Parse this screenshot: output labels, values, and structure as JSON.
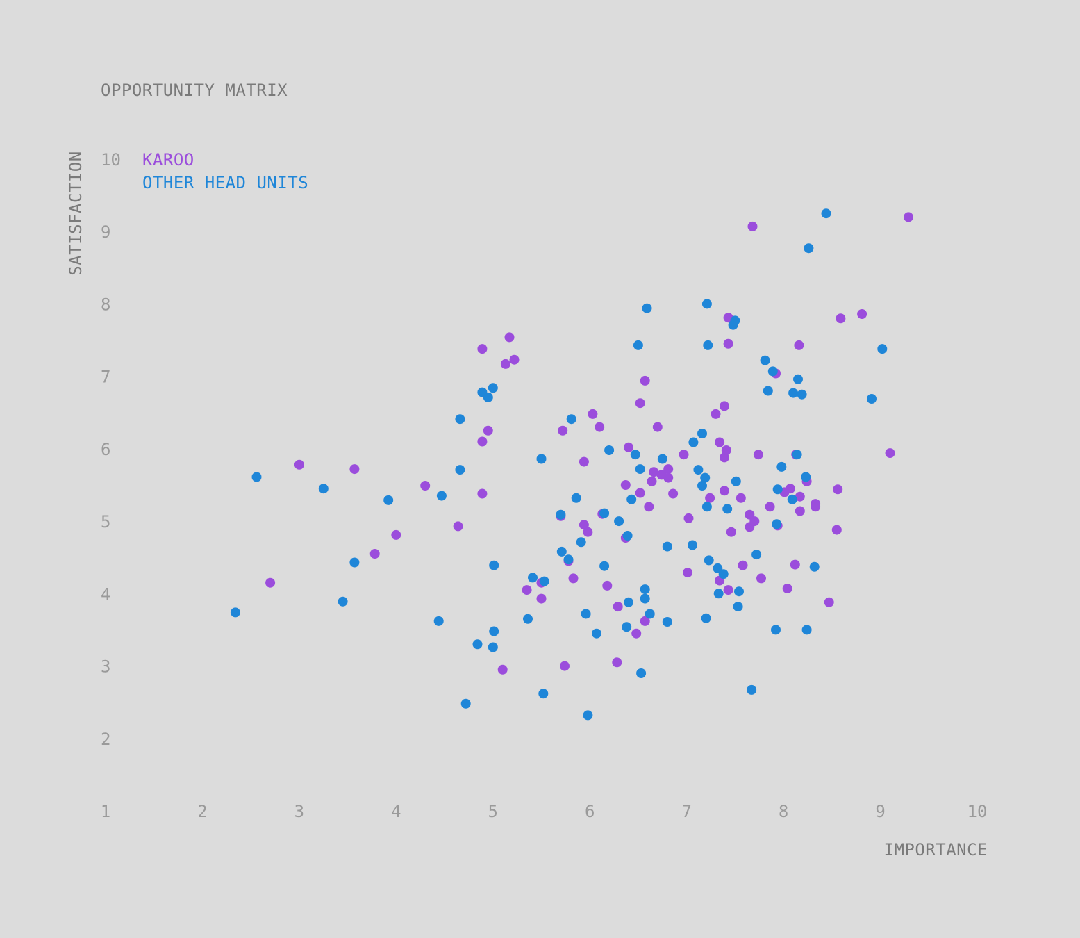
{
  "chart_data": {
    "type": "scatter",
    "title": "OPPORTUNITY MATRIX",
    "xlabel": "IMPORTANCE",
    "ylabel": "SATISFACTION",
    "xlim": [
      1,
      10
    ],
    "ylim": [
      1,
      10
    ],
    "xticks": [
      "1",
      "2",
      "3",
      "4",
      "5",
      "6",
      "7",
      "8",
      "9",
      "10"
    ],
    "yticks": [
      "2",
      "3",
      "4",
      "5",
      "6",
      "7",
      "8",
      "9",
      "10"
    ],
    "grid": false,
    "legend_position": "top-left",
    "series": [
      {
        "name": "KAROO",
        "color": "#9b4ddc",
        "points": [
          [
            2.7,
            4.15
          ],
          [
            3.0,
            5.78
          ],
          [
            3.57,
            5.72
          ],
          [
            3.78,
            4.55
          ],
          [
            4.0,
            4.81
          ],
          [
            4.3,
            5.49
          ],
          [
            4.64,
            4.93
          ],
          [
            4.89,
            7.38
          ],
          [
            4.89,
            6.1
          ],
          [
            4.89,
            5.38
          ],
          [
            4.95,
            6.25
          ],
          [
            5.1,
            2.95
          ],
          [
            5.13,
            7.17
          ],
          [
            5.17,
            7.54
          ],
          [
            5.22,
            7.23
          ],
          [
            5.35,
            4.05
          ],
          [
            5.5,
            3.93
          ],
          [
            5.5,
            4.15
          ],
          [
            5.7,
            5.07
          ],
          [
            5.72,
            6.25
          ],
          [
            5.74,
            3.0
          ],
          [
            5.78,
            4.45
          ],
          [
            5.83,
            4.21
          ],
          [
            5.94,
            5.82
          ],
          [
            5.94,
            4.95
          ],
          [
            5.98,
            4.85
          ],
          [
            6.03,
            6.48
          ],
          [
            6.1,
            6.3
          ],
          [
            6.13,
            5.1
          ],
          [
            6.18,
            4.11
          ],
          [
            6.28,
            3.05
          ],
          [
            6.29,
            3.82
          ],
          [
            6.37,
            5.5
          ],
          [
            6.37,
            4.77
          ],
          [
            6.4,
            6.02
          ],
          [
            6.48,
            3.45
          ],
          [
            6.52,
            5.39
          ],
          [
            6.52,
            6.63
          ],
          [
            6.57,
            6.94
          ],
          [
            6.57,
            3.62
          ],
          [
            6.61,
            5.2
          ],
          [
            6.64,
            5.55
          ],
          [
            6.66,
            5.68
          ],
          [
            6.7,
            6.3
          ],
          [
            6.74,
            5.64
          ],
          [
            6.81,
            5.6
          ],
          [
            6.81,
            5.72
          ],
          [
            6.86,
            5.38
          ],
          [
            6.97,
            5.92
          ],
          [
            7.02,
            5.04
          ],
          [
            7.01,
            4.29
          ],
          [
            7.24,
            5.32
          ],
          [
            7.3,
            6.48
          ],
          [
            7.34,
            6.09
          ],
          [
            7.34,
            4.18
          ],
          [
            7.39,
            6.59
          ],
          [
            7.39,
            5.88
          ],
          [
            7.39,
            5.42
          ],
          [
            7.41,
            5.98
          ],
          [
            7.43,
            4.05
          ],
          [
            7.43,
            7.45
          ],
          [
            7.43,
            7.81
          ],
          [
            7.46,
            4.85
          ],
          [
            7.56,
            5.32
          ],
          [
            7.58,
            4.39
          ],
          [
            7.65,
            4.92
          ],
          [
            7.65,
            5.09
          ],
          [
            7.68,
            9.07
          ],
          [
            7.7,
            5.0
          ],
          [
            7.74,
            5.92
          ],
          [
            7.77,
            4.21
          ],
          [
            7.86,
            5.2
          ],
          [
            7.92,
            7.04
          ],
          [
            7.94,
            4.94
          ],
          [
            8.01,
            5.4
          ],
          [
            8.04,
            4.07
          ],
          [
            8.07,
            5.45
          ],
          [
            8.12,
            4.4
          ],
          [
            8.13,
            5.92
          ],
          [
            8.16,
            7.43
          ],
          [
            8.17,
            5.14
          ],
          [
            8.17,
            5.34
          ],
          [
            8.24,
            5.55
          ],
          [
            8.33,
            5.2
          ],
          [
            8.33,
            5.24
          ],
          [
            8.47,
            3.88
          ],
          [
            8.55,
            4.88
          ],
          [
            8.56,
            5.44
          ],
          [
            8.59,
            7.8
          ],
          [
            8.81,
            7.86
          ],
          [
            9.1,
            5.94
          ],
          [
            9.29,
            9.2
          ]
        ]
      },
      {
        "name": "OTHER HEAD UNITS",
        "color": "#1f86d8",
        "points": [
          [
            2.34,
            3.74
          ],
          [
            2.56,
            5.61
          ],
          [
            3.25,
            5.45
          ],
          [
            3.45,
            3.89
          ],
          [
            3.57,
            4.43
          ],
          [
            3.92,
            5.29
          ],
          [
            4.44,
            3.62
          ],
          [
            4.47,
            5.35
          ],
          [
            4.66,
            5.71
          ],
          [
            4.66,
            6.41
          ],
          [
            4.84,
            3.3
          ],
          [
            4.72,
            2.48
          ],
          [
            4.89,
            6.78
          ],
          [
            4.95,
            6.71
          ],
          [
            5.0,
            6.84
          ],
          [
            5.0,
            3.26
          ],
          [
            5.01,
            4.39
          ],
          [
            5.01,
            3.48
          ],
          [
            5.36,
            3.65
          ],
          [
            5.41,
            4.22
          ],
          [
            5.5,
            5.86
          ],
          [
            5.52,
            2.62
          ],
          [
            5.53,
            4.17
          ],
          [
            5.7,
            5.09
          ],
          [
            5.71,
            4.58
          ],
          [
            5.78,
            4.47
          ],
          [
            5.81,
            6.41
          ],
          [
            5.86,
            5.32
          ],
          [
            5.91,
            4.71
          ],
          [
            5.96,
            3.72
          ],
          [
            5.98,
            2.32
          ],
          [
            6.07,
            3.45
          ],
          [
            6.15,
            5.11
          ],
          [
            6.15,
            4.38
          ],
          [
            6.2,
            5.98
          ],
          [
            6.3,
            5.0
          ],
          [
            6.38,
            3.54
          ],
          [
            6.39,
            4.8
          ],
          [
            6.4,
            3.88
          ],
          [
            6.43,
            5.3
          ],
          [
            6.47,
            5.92
          ],
          [
            6.5,
            7.43
          ],
          [
            6.52,
            5.72
          ],
          [
            6.53,
            2.9
          ],
          [
            6.57,
            4.06
          ],
          [
            6.57,
            3.93
          ],
          [
            6.59,
            7.94
          ],
          [
            6.62,
            3.72
          ],
          [
            6.75,
            5.86
          ],
          [
            6.8,
            3.61
          ],
          [
            6.8,
            4.65
          ],
          [
            7.06,
            4.67
          ],
          [
            7.07,
            6.09
          ],
          [
            7.12,
            5.71
          ],
          [
            7.16,
            5.49
          ],
          [
            7.16,
            6.21
          ],
          [
            7.19,
            5.6
          ],
          [
            7.2,
            3.66
          ],
          [
            7.21,
            5.2
          ],
          [
            7.21,
            8.0
          ],
          [
            7.22,
            7.43
          ],
          [
            7.23,
            4.46
          ],
          [
            7.32,
            4.35
          ],
          [
            7.33,
            4.0
          ],
          [
            7.38,
            4.27
          ],
          [
            7.42,
            5.17
          ],
          [
            7.48,
            7.71
          ],
          [
            7.5,
            7.77
          ],
          [
            7.51,
            5.55
          ],
          [
            7.53,
            3.82
          ],
          [
            7.54,
            4.03
          ],
          [
            7.67,
            2.67
          ],
          [
            7.72,
            4.54
          ],
          [
            7.81,
            7.22
          ],
          [
            7.84,
            6.8
          ],
          [
            7.89,
            7.07
          ],
          [
            7.92,
            3.5
          ],
          [
            7.93,
            4.96
          ],
          [
            7.94,
            5.44
          ],
          [
            7.98,
            5.75
          ],
          [
            8.09,
            5.3
          ],
          [
            8.1,
            6.77
          ],
          [
            8.14,
            5.92
          ],
          [
            8.15,
            6.96
          ],
          [
            8.19,
            6.75
          ],
          [
            8.23,
            5.61
          ],
          [
            8.24,
            3.5
          ],
          [
            8.26,
            8.77
          ],
          [
            8.32,
            4.37
          ],
          [
            8.44,
            9.25
          ],
          [
            8.91,
            6.69
          ],
          [
            9.02,
            7.38
          ]
        ]
      }
    ]
  }
}
